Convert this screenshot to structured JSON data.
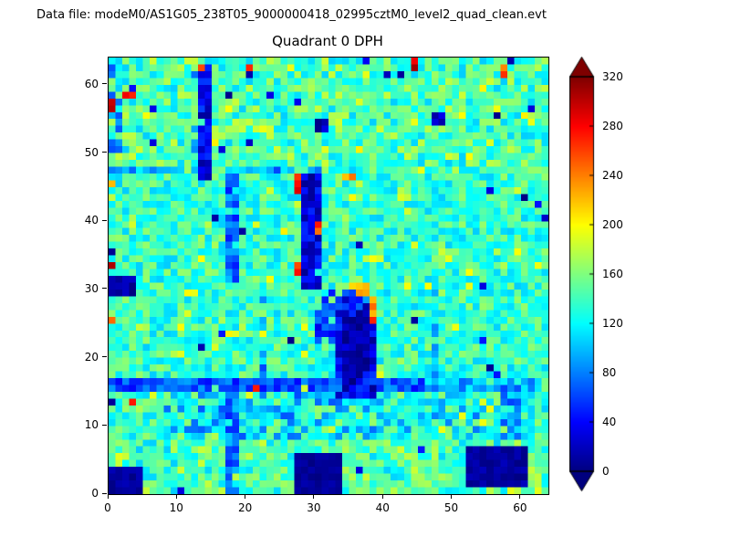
{
  "header": {
    "data_file": "Data file: modeM0/AS1G05_238T05_9000000418_02995cztM0_level2_quad_clean.evt"
  },
  "chart_data": {
    "type": "heatmap",
    "title": "Quadrant 0 DPH",
    "grid_size": 64,
    "xlim": [
      0,
      64
    ],
    "ylim": [
      0,
      64
    ],
    "x_ticks": [
      0,
      10,
      20,
      30,
      40,
      50,
      60
    ],
    "y_ticks": [
      0,
      10,
      20,
      30,
      40,
      50,
      60
    ],
    "colormap": "jet",
    "vmin": 0,
    "vmax": 320,
    "colorbar": {
      "ticks": [
        0,
        40,
        80,
        120,
        160,
        200,
        240,
        280,
        320
      ],
      "extend": "both"
    },
    "seed": 42,
    "base": {
      "mean": 136,
      "spread": 64,
      "speckle_green_p": 0.05,
      "speckle_dark_p": 0.012
    },
    "features": [
      [
        0,
        48,
        64,
        16,
        125,
        185,
        0.35
      ],
      [
        0,
        0,
        64,
        8,
        120,
        185,
        0.4
      ],
      [
        8,
        8,
        27,
        8,
        60,
        125,
        0.5
      ],
      [
        36,
        8,
        22,
        8,
        75,
        130,
        0.4
      ],
      [
        40,
        28,
        24,
        19,
        105,
        155,
        0.35
      ],
      [
        0,
        50,
        2,
        13,
        60,
        120,
        0.5
      ],
      [
        0,
        15,
        46,
        2,
        40,
        95,
        0.95
      ],
      [
        46,
        15,
        18,
        2,
        70,
        120,
        0.7
      ],
      [
        0,
        47,
        32,
        1,
        60,
        110,
        0.6
      ],
      [
        17,
        0,
        2,
        15,
        45,
        105,
        0.85
      ],
      [
        22,
        16,
        1,
        14,
        60,
        115,
        0.6
      ],
      [
        13,
        46,
        2,
        17,
        8,
        60,
        0.95
      ],
      [
        12,
        45,
        1,
        17,
        60,
        110,
        0.5
      ],
      [
        17,
        31,
        2,
        16,
        45,
        100,
        0.85
      ],
      [
        28,
        30,
        3,
        17,
        5,
        55,
        0.95
      ],
      [
        47,
        16,
        1,
        15,
        75,
        120,
        0.6
      ],
      [
        57,
        8,
        3,
        8,
        60,
        115,
        0.55
      ],
      [
        33,
        14,
        6,
        15,
        5,
        60,
        0.95
      ],
      [
        34,
        16,
        4,
        10,
        0,
        25,
        0.95
      ],
      [
        30,
        22,
        3,
        6,
        25,
        80,
        0.8
      ],
      [
        31,
        27,
        7,
        3,
        40,
        100,
        0.6
      ],
      [
        36,
        14,
        3,
        3,
        30,
        90,
        0.7
      ],
      [
        0,
        0,
        5,
        4,
        0,
        18,
        1
      ],
      [
        27,
        0,
        7,
        6,
        0,
        15,
        1
      ],
      [
        52,
        1,
        9,
        6,
        0,
        20,
        1
      ],
      [
        0,
        29,
        4,
        3,
        0,
        25,
        1
      ],
      [
        30,
        53,
        2,
        2,
        0,
        35,
        1
      ],
      [
        47,
        54,
        2,
        2,
        10,
        50,
        0.8
      ],
      [
        13,
        55,
        2,
        1,
        0,
        40,
        1
      ],
      [
        27,
        44,
        1,
        3,
        235,
        300,
        1
      ],
      [
        27,
        32,
        1,
        2,
        255,
        320,
        1
      ],
      [
        30,
        38,
        1,
        2,
        225,
        285,
        0.9
      ],
      [
        38,
        23,
        1,
        6,
        195,
        275,
        0.6
      ],
      [
        35,
        29,
        3,
        2,
        175,
        255,
        0.5
      ],
      [
        34,
        46,
        2,
        1,
        215,
        280,
        0.9
      ],
      [
        0,
        56,
        1,
        2,
        255,
        320,
        1
      ],
      [
        2,
        58,
        2,
        1,
        235,
        300,
        1
      ],
      [
        0,
        33,
        1,
        1,
        280,
        320,
        1
      ],
      [
        0,
        25,
        1,
        1,
        240,
        300,
        1
      ],
      [
        0,
        45,
        1,
        1,
        200,
        260,
        1
      ],
      [
        44,
        62,
        1,
        2,
        275,
        320,
        1
      ],
      [
        57,
        61,
        1,
        2,
        230,
        290,
        1
      ],
      [
        13,
        62,
        1,
        1,
        205,
        260,
        1
      ],
      [
        20,
        62,
        1,
        1,
        240,
        300,
        0.9
      ],
      [
        3,
        13,
        1,
        1,
        220,
        285,
        1
      ],
      [
        21,
        15,
        1,
        1,
        235,
        295,
        1
      ],
      [
        63,
        40,
        1,
        1,
        0,
        40,
        1
      ]
    ]
  }
}
